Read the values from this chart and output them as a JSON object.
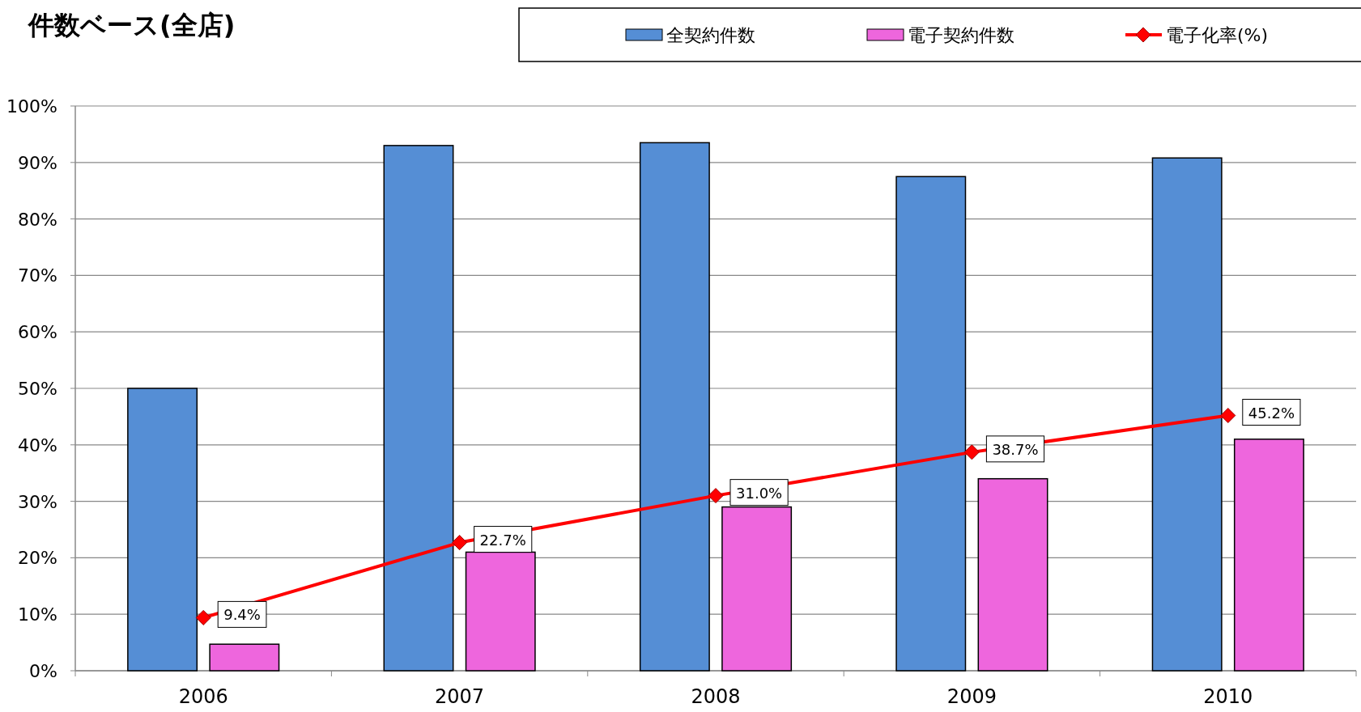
{
  "chart_data": {
    "type": "bar",
    "title": "件数ベース(全店)",
    "categories": [
      "2006",
      "2007",
      "2008",
      "2009",
      "2010"
    ],
    "series": [
      {
        "name": "全契約件数",
        "color": "#558ed5",
        "values": [
          50,
          93,
          93.5,
          87.5,
          90.8
        ]
      },
      {
        "name": "電子契約件数",
        "color": "#ee66dd",
        "values": [
          4.7,
          21,
          29,
          34,
          41
        ]
      },
      {
        "name": "電子化率(%)",
        "type": "line",
        "color": "#ff0000",
        "marker": "diamond",
        "values": [
          9.4,
          22.7,
          31.0,
          38.7,
          45.2
        ],
        "value_labels": [
          "9.4%",
          "22.7%",
          "31.0%",
          "38.7%",
          "45.2%"
        ]
      }
    ],
    "ylim": [
      0,
      100
    ],
    "yticks": [
      {
        "value": 0,
        "label": "0%"
      },
      {
        "value": 10,
        "label": "10%"
      },
      {
        "value": 20,
        "label": "20%"
      },
      {
        "value": 30,
        "label": "30%"
      },
      {
        "value": 40,
        "label": "40%"
      },
      {
        "value": 50,
        "label": "50%"
      },
      {
        "value": 60,
        "label": "60%"
      },
      {
        "value": 70,
        "label": "70%"
      },
      {
        "value": 80,
        "label": "80%"
      },
      {
        "value": 90,
        "label": "90%"
      },
      {
        "value": 100,
        "label": "100%"
      }
    ],
    "grid": "y",
    "legend": "top right"
  }
}
